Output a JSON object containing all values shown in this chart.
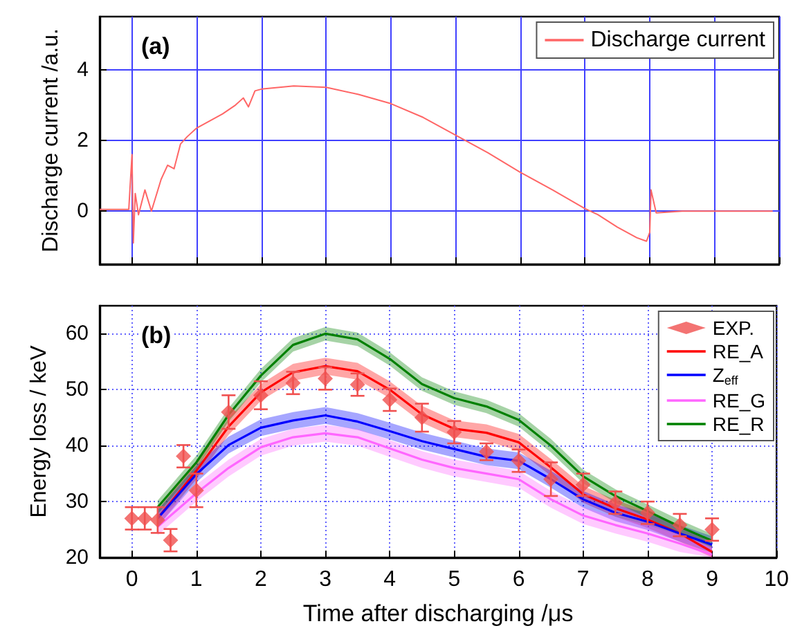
{
  "chart_data": [
    {
      "type": "line",
      "ylabel": "Discharge current /a.u.",
      "annotations": [
        "(a)"
      ],
      "xlim": [
        -0.5,
        10
      ],
      "xticks": [
        0,
        1,
        2,
        3,
        4,
        5,
        6,
        7,
        8,
        9,
        10
      ],
      "ylim": [
        -1.5,
        5.5
      ],
      "yticks": [
        0,
        2,
        4
      ],
      "tick_labels": "y",
      "grid": true,
      "legend": "top right",
      "marker": "none",
      "series": [
        {
          "name": "Discharge current",
          "color": "#ff6666",
          "x": [
            -0.5,
            -0.05,
            0.0,
            0.02,
            0.05,
            0.1,
            0.2,
            0.3,
            0.45,
            0.55,
            0.65,
            0.75,
            0.85,
            1.0,
            1.2,
            1.4,
            1.6,
            1.72,
            1.8,
            1.9,
            2.0,
            2.5,
            3.0,
            3.5,
            4.0,
            4.5,
            5.0,
            5.5,
            6.0,
            6.5,
            7.0,
            7.2,
            7.5,
            7.8,
            7.95,
            8.0,
            8.02,
            8.1,
            8.5,
            9.0,
            9.9
          ],
          "values": [
            0.05,
            0.05,
            1.6,
            -0.9,
            0.5,
            -0.1,
            0.6,
            0.0,
            0.9,
            1.3,
            1.2,
            1.9,
            2.1,
            2.35,
            2.55,
            2.75,
            3.0,
            3.2,
            2.95,
            3.4,
            3.45,
            3.54,
            3.5,
            3.3,
            3.04,
            2.65,
            2.15,
            1.65,
            1.1,
            0.6,
            0.07,
            -0.1,
            -0.45,
            -0.75,
            -0.85,
            -0.6,
            0.6,
            -0.05,
            0.0,
            0.0,
            0.0
          ]
        }
      ]
    },
    {
      "type": "line",
      "xlabel": "Time after discharging /μs",
      "ylabel": "Energy loss / keV",
      "annotations": [
        "(b)"
      ],
      "xlim": [
        -0.5,
        10
      ],
      "xticks": [
        0,
        1,
        2,
        3,
        4,
        5,
        6,
        7,
        8,
        9,
        10
      ],
      "ylim": [
        20,
        65
      ],
      "yticks": [
        20,
        30,
        40,
        50,
        60
      ],
      "grid": true,
      "legend": "top right",
      "marker": "none",
      "series": [
        {
          "name": "EXP.",
          "type": "scatter",
          "marker": "diamond",
          "color": "#f0504f",
          "x": [
            0,
            0.2,
            0.4,
            0.6,
            0.8,
            1.0,
            1.5,
            2.0,
            2.5,
            3.0,
            3.5,
            4.0,
            4.5,
            5.0,
            5.5,
            6.0,
            6.5,
            7.0,
            7.5,
            8.0,
            8.5,
            9.0
          ],
          "values": [
            27.0,
            27.0,
            26.7,
            23.1,
            38.1,
            32.0,
            46.0,
            49.0,
            51.2,
            52.0,
            50.9,
            48.2,
            45.0,
            42.4,
            38.9,
            37.3,
            34.0,
            33.0,
            29.8,
            28.0,
            25.8,
            25.0
          ],
          "errors": [
            2,
            2,
            2.3,
            2,
            2,
            3,
            3,
            2.5,
            2,
            2,
            2,
            2,
            2.5,
            2,
            1.5,
            2,
            3,
            2,
            2,
            2,
            2,
            2
          ]
        },
        {
          "name": "RE_A",
          "color": "#ff0000",
          "x": [
            0.4,
            1,
            1.5,
            2,
            2.5,
            3,
            3.5,
            4,
            4.5,
            5,
            5.5,
            6,
            6.5,
            7,
            7.5,
            8,
            8.5,
            9
          ],
          "values": [
            27,
            35.5,
            43.4,
            49.5,
            53.1,
            54.2,
            53.3,
            50,
            45.6,
            43,
            42.3,
            40.6,
            36.1,
            31.3,
            28.8,
            26.8,
            24.3,
            21
          ],
          "lower": [
            25.5,
            34,
            41.9,
            48,
            51.6,
            52.7,
            51.8,
            48.5,
            44.1,
            41.5,
            40.8,
            39.1,
            34.6,
            29.8,
            27.3,
            25.3,
            22.8,
            20
          ],
          "upper": [
            28.5,
            37,
            44.9,
            51,
            54.6,
            55.7,
            54.8,
            51.5,
            47.1,
            44.5,
            43.8,
            42.1,
            37.6,
            32.8,
            30.3,
            28.3,
            25.8,
            22.5
          ]
        },
        {
          "name": "Z$_{eff}$",
          "color": "#0000ff",
          "x": [
            0.4,
            1,
            1.5,
            2,
            2.5,
            3,
            3.5,
            4,
            4.5,
            5,
            5.5,
            6,
            6.5,
            7,
            7.5,
            8,
            8.5,
            9
          ],
          "values": [
            27,
            34.9,
            40.1,
            43.2,
            44.5,
            45.4,
            44.3,
            42.6,
            40.8,
            39.4,
            38,
            37.3,
            34,
            30.4,
            28,
            26.4,
            24.3,
            22.3
          ],
          "lower": [
            25.5,
            33.4,
            38.6,
            41.7,
            43,
            43.9,
            42.8,
            41.1,
            39.3,
            37.9,
            36.5,
            35.8,
            32.5,
            28.9,
            26.5,
            24.9,
            22.8,
            20.8
          ],
          "upper": [
            28.5,
            36.4,
            41.6,
            44.7,
            46,
            46.9,
            45.8,
            44.1,
            42.3,
            40.9,
            39.5,
            38.8,
            35.5,
            31.9,
            29.5,
            27.9,
            25.8,
            23.8
          ]
        },
        {
          "name": "RE_G",
          "color": "#ff66ff",
          "x": [
            0.4,
            1,
            1.5,
            2,
            2.5,
            3,
            3.5,
            4,
            4.5,
            5,
            5.5,
            6,
            6.5,
            7,
            7.5,
            8,
            8.5,
            9
          ],
          "values": [
            25.5,
            31.5,
            36,
            39.7,
            41.5,
            42.2,
            41.5,
            39.5,
            37.5,
            36,
            35,
            34,
            30.4,
            27.5,
            25.8,
            24.3,
            22.5,
            20.5
          ],
          "lower": [
            24,
            30,
            34.5,
            38.2,
            40,
            40.7,
            40,
            38,
            36,
            34.5,
            33.5,
            32.5,
            28.9,
            26,
            24.3,
            22.8,
            21,
            20
          ],
          "upper": [
            27,
            33,
            37.5,
            41.2,
            43,
            43.7,
            43,
            41,
            39,
            37.5,
            36.5,
            35.5,
            31.9,
            29,
            27.3,
            25.8,
            24,
            22
          ]
        },
        {
          "name": "RE_R",
          "color": "#008000",
          "x": [
            0.4,
            1,
            1.5,
            2,
            2.5,
            3,
            3.5,
            4,
            4.5,
            5,
            5.5,
            6,
            6.5,
            7,
            7.5,
            8,
            8.5,
            9
          ],
          "values": [
            29,
            37,
            45.5,
            52.5,
            58,
            60,
            59,
            55.5,
            51,
            48.5,
            47,
            44.6,
            40,
            34.5,
            31,
            28.3,
            25.5,
            23
          ],
          "lower": [
            27.8,
            35.8,
            44.3,
            51.3,
            56.8,
            58.8,
            57.8,
            54.3,
            49.8,
            47.3,
            45.8,
            43.4,
            38.8,
            33.3,
            29.8,
            27.1,
            24.3,
            21.8
          ],
          "upper": [
            30.2,
            38.2,
            46.7,
            53.7,
            59.2,
            61.2,
            60.2,
            56.7,
            52.2,
            49.7,
            48.2,
            45.8,
            41.2,
            35.7,
            32.2,
            29.5,
            26.7,
            24.2
          ]
        }
      ]
    }
  ]
}
